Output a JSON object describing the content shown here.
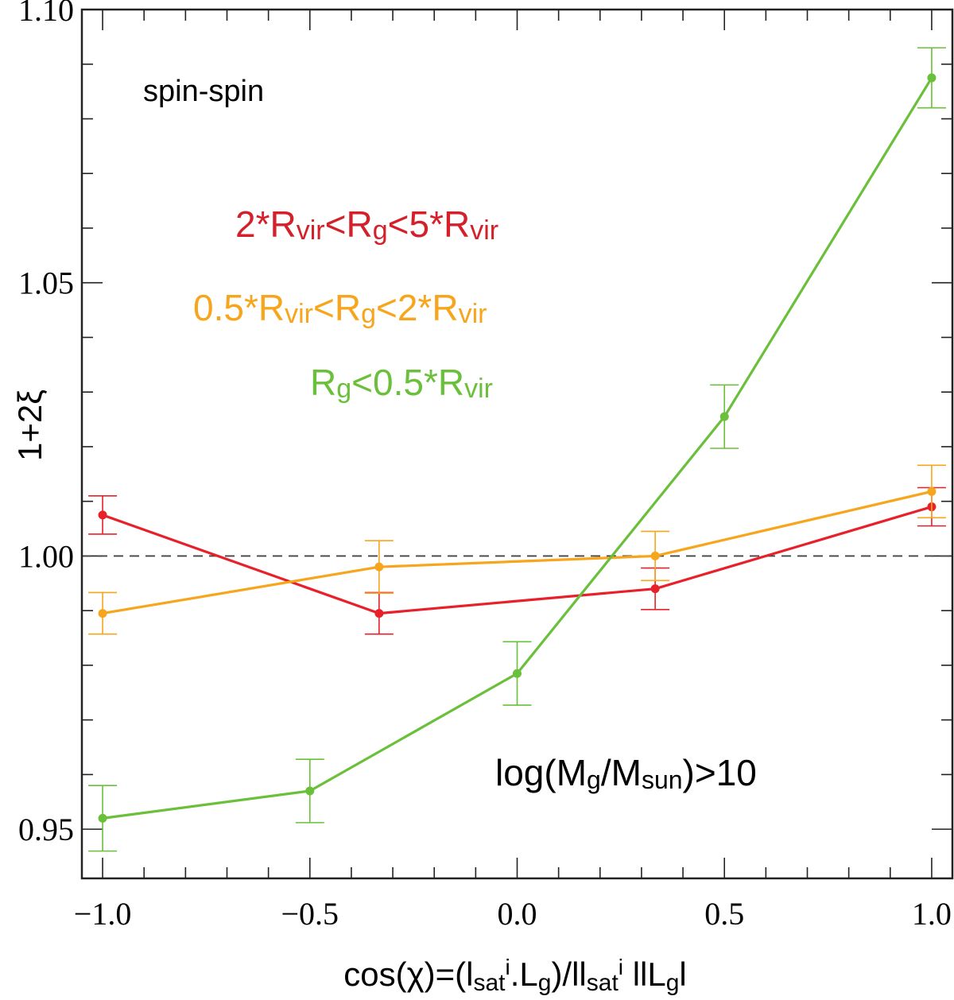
{
  "chart_data": {
    "type": "line",
    "panel_label": "spin-spin",
    "mass_cut": {
      "prefix": "log(M",
      "sub1": "g",
      "mid": "/M",
      "sub2": "sun",
      "suffix": ")>10"
    },
    "ylabel": "1+2ξ",
    "xlabel": {
      "a": "cos(χ)=(l",
      "b": "sat",
      "c": "i",
      "d": ".L",
      "e": "g",
      "f": ")/ll",
      "g": "sat",
      "h": "i",
      "i": " llL",
      "j": "g",
      "k": "l"
    },
    "xlim": [
      -1.05,
      1.05
    ],
    "ylim": [
      0.941,
      1.1
    ],
    "x_ticks": [
      -1.0,
      -0.5,
      0.0,
      0.5,
      1.0
    ],
    "x_tick_labels": [
      "−1.0",
      "−0.5",
      "0.0",
      "0.5",
      "1.0"
    ],
    "y_ticks": [
      0.95,
      1.0,
      1.05,
      1.1
    ],
    "y_tick_labels": [
      "0.95",
      "1.00",
      "1.05",
      "1.10"
    ],
    "reference_line": 1.0,
    "series": [
      {
        "name": "2*Rvir<Rg<5*Rvir",
        "label_parts": [
          "2*R",
          "vir",
          "<R",
          "g",
          "<5*R",
          "vir"
        ],
        "color": "#e8202a",
        "x": [
          -1.0,
          -0.333,
          0.333,
          1.0
        ],
        "y": [
          1.0075,
          0.9895,
          0.994,
          1.009
        ],
        "err": [
          0.0035,
          0.0038,
          0.0038,
          0.0035
        ]
      },
      {
        "name": "0.5*Rvir<Rg<2*Rvir",
        "label_parts": [
          "0.5*R",
          "vir",
          "<R",
          "g",
          "<2*R",
          "vir"
        ],
        "color": "#f7a51c",
        "x": [
          -1.0,
          -0.333,
          0.333,
          1.0
        ],
        "y": [
          0.9895,
          0.998,
          1.0,
          1.0118
        ],
        "err": [
          0.0038,
          0.0048,
          0.0045,
          0.0048
        ]
      },
      {
        "name": "Rg<0.5*Rvir",
        "label_parts": [
          "R",
          "g",
          "<0.5*R",
          "vir"
        ],
        "color": "#6abf3b",
        "x": [
          -1.0,
          -0.5,
          0.0,
          0.5,
          1.0
        ],
        "y": [
          0.952,
          0.957,
          0.9785,
          1.0255,
          1.0875
        ],
        "err": [
          0.006,
          0.0058,
          0.0058,
          0.0058,
          0.0055
        ]
      }
    ]
  }
}
